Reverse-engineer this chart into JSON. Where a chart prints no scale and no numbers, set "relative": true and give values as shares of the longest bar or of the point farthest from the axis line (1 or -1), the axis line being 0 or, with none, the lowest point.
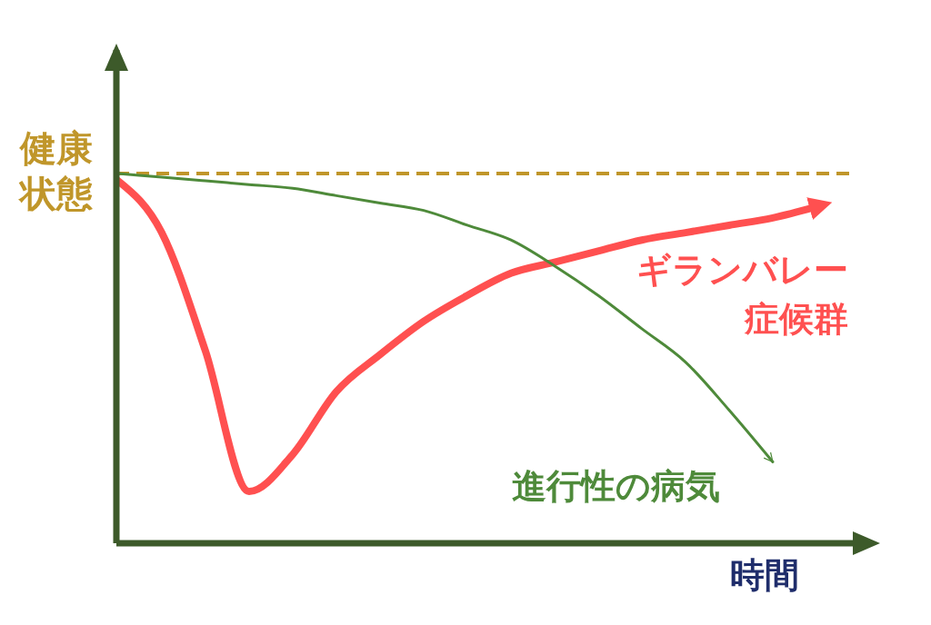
{
  "chart_data": {
    "type": "line",
    "relative": true,
    "ylabel": "健康状態",
    "xlabel": "時間",
    "legend": false,
    "grid": false,
    "marker": "none",
    "categories": [
      null,
      null,
      null,
      null,
      null,
      null,
      null,
      null,
      null,
      null,
      null,
      null,
      null,
      null,
      null,
      null,
      null
    ],
    "series": [
      {
        "name": "ギランバレー症候群",
        "color": "#ff5050",
        "values": [
          0.98,
          0.84,
          0.52,
          0.14,
          0.24,
          0.41,
          0.51,
          0.6,
          0.67,
          0.73,
          0.76,
          0.79,
          0.82,
          0.84,
          0.86,
          0.88,
          0.91
        ]
      },
      {
        "name": "進行性の病気",
        "color": "#4e8a3a",
        "values": [
          1.0,
          0.99,
          0.98,
          0.97,
          0.96,
          0.94,
          0.92,
          0.9,
          0.86,
          0.82,
          0.75,
          0.67,
          0.58,
          0.49,
          0.36,
          0.22,
          null
        ]
      }
    ],
    "ref_lines": [
      {
        "axis": "y",
        "value": 1,
        "color": "#c0962a",
        "line_style": "dashed"
      }
    ]
  }
}
